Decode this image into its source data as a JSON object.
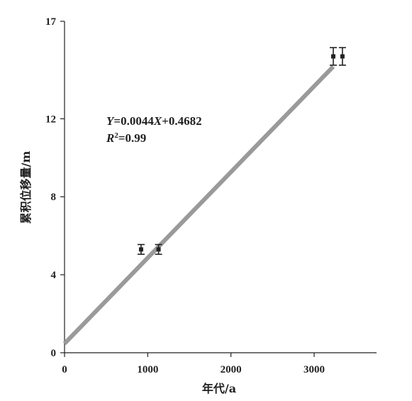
{
  "chart_data": {
    "type": "scatter",
    "title": "",
    "xlabel": "年代/a",
    "ylabel": "累积位移量/m",
    "xlim": [
      0,
      3750
    ],
    "ylim": [
      0,
      17
    ],
    "xticks": [
      0,
      1000,
      2000,
      3000
    ],
    "yticks": [
      0,
      4,
      8,
      12,
      17
    ],
    "xtick_labels": [
      "0",
      "1000",
      "2000",
      "3000"
    ],
    "ytick_labels": [
      "0",
      "4",
      "8",
      "12",
      "17"
    ],
    "grid": false,
    "legend": "none",
    "points": [
      {
        "x": 920,
        "y": 5.3,
        "yerr": 0.25
      },
      {
        "x": 1130,
        "y": 5.3,
        "yerr": 0.25
      },
      {
        "x": 3230,
        "y": 15.2,
        "yerr": 0.45
      },
      {
        "x": 3340,
        "y": 15.2,
        "yerr": 0.45
      }
    ],
    "fit_line": {
      "slope": 0.0044,
      "intercept": 0.4682,
      "x_range": [
        0,
        3230
      ],
      "color": "#9a9a9a"
    },
    "annotation": {
      "equation_y": "Y",
      "equation_rest": "=0.0044",
      "equation_x": "X",
      "equation_tail": "+0.4682",
      "r2_label": "R",
      "r2_sup": "2",
      "r2_value": "=0.99"
    }
  }
}
